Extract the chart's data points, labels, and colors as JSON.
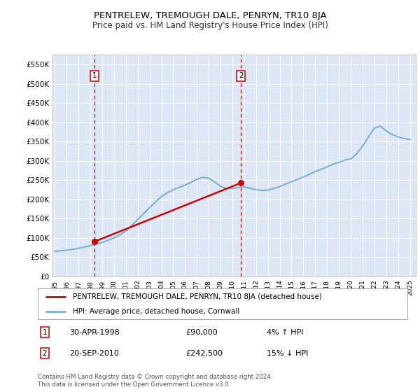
{
  "title": "PENTRELEW, TREMOUGH DALE, PENRYN, TR10 8JA",
  "subtitle": "Price paid vs. HM Land Registry's House Price Index (HPI)",
  "ylabel_ticks": [
    "£0",
    "£50K",
    "£100K",
    "£150K",
    "£200K",
    "£250K",
    "£300K",
    "£350K",
    "£400K",
    "£450K",
    "£500K",
    "£550K"
  ],
  "ytick_values": [
    0,
    50000,
    100000,
    150000,
    200000,
    250000,
    300000,
    350000,
    400000,
    450000,
    500000,
    550000
  ],
  "ylim": [
    0,
    575000
  ],
  "xlim_start": 1994.8,
  "xlim_end": 2025.5,
  "plot_bg": "#dce6f5",
  "grid_color": "#ffffff",
  "marker1_year": 1998.33,
  "marker1_price": 90000,
  "marker2_year": 2010.72,
  "marker2_price": 242500,
  "sale_color": "#cc0000",
  "hpi_line_color": "#7bafd4",
  "legend_sale_label": "PENTRELEW, TREMOUGH DALE, PENRYN, TR10 8JA (detached house)",
  "legend_hpi_label": "HPI: Average price, detached house, Cornwall",
  "annotation1_date": "30-APR-1998",
  "annotation1_price": "£90,000",
  "annotation1_hpi": "4% ↑ HPI",
  "annotation2_date": "20-SEP-2010",
  "annotation2_price": "£242,500",
  "annotation2_hpi": "15% ↓ HPI",
  "footer": "Contains HM Land Registry data © Crown copyright and database right 2024.\nThis data is licensed under the Open Government Licence v3.0.",
  "xtick_years": [
    1995,
    1996,
    1997,
    1998,
    1999,
    2000,
    2001,
    2002,
    2003,
    2004,
    2005,
    2006,
    2007,
    2008,
    2009,
    2010,
    2011,
    2012,
    2013,
    2014,
    2015,
    2016,
    2017,
    2018,
    2019,
    2020,
    2021,
    2022,
    2023,
    2024,
    2025
  ],
  "hpi_years": [
    1995.0,
    1995.5,
    1996.0,
    1996.5,
    1997.0,
    1997.5,
    1998.0,
    1998.5,
    1999.0,
    1999.5,
    2000.0,
    2000.5,
    2001.0,
    2001.5,
    2002.0,
    2002.5,
    2003.0,
    2003.5,
    2004.0,
    2004.5,
    2005.0,
    2005.5,
    2006.0,
    2006.5,
    2007.0,
    2007.5,
    2008.0,
    2008.5,
    2009.0,
    2009.5,
    2010.0,
    2010.5,
    2011.0,
    2011.5,
    2012.0,
    2012.5,
    2013.0,
    2013.5,
    2014.0,
    2014.5,
    2015.0,
    2015.5,
    2016.0,
    2016.5,
    2017.0,
    2017.5,
    2018.0,
    2018.5,
    2019.0,
    2019.5,
    2020.0,
    2020.5,
    2021.0,
    2021.5,
    2022.0,
    2022.5,
    2023.0,
    2023.5,
    2024.0,
    2024.5,
    2025.0
  ],
  "hpi_values": [
    65000,
    66500,
    68000,
    70000,
    73000,
    76000,
    80000,
    84000,
    88000,
    94000,
    100000,
    108000,
    118000,
    132000,
    148000,
    163000,
    178000,
    193000,
    207000,
    217000,
    225000,
    231000,
    237000,
    244000,
    252000,
    257000,
    255000,
    245000,
    234000,
    228000,
    228000,
    231000,
    232000,
    229000,
    225000,
    223000,
    224000,
    228000,
    233000,
    240000,
    246000,
    252000,
    258000,
    265000,
    272000,
    278000,
    284000,
    291000,
    296000,
    302000,
    305000,
    318000,
    338000,
    362000,
    385000,
    390000,
    378000,
    368000,
    362000,
    358000,
    355000
  ],
  "sale_years": [
    1998.33,
    2010.72
  ],
  "sale_prices": [
    90000,
    242500
  ]
}
